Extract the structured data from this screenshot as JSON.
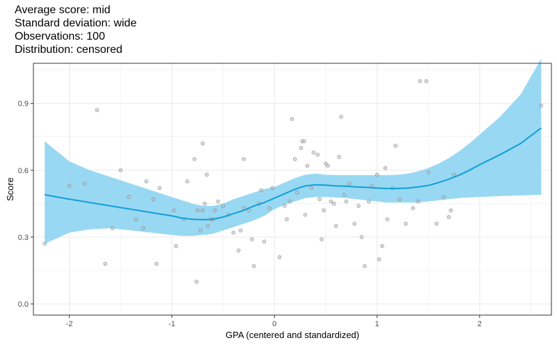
{
  "title_lines": [
    "Average score: mid",
    "Standard deviation: wide",
    "Observations: 100",
    "Distribution: censored"
  ],
  "chart_data": {
    "type": "scatter",
    "xlabel": "GPA (centered and standardized)",
    "ylabel": "Score",
    "xlim": [
      -2.35,
      2.7
    ],
    "ylim": [
      -0.05,
      1.08
    ],
    "x_ticks": [
      -2,
      -1,
      0,
      1,
      2
    ],
    "y_ticks": [
      0.0,
      0.3,
      0.6,
      0.9
    ],
    "x_tick_labels": [
      "-2",
      "-1",
      "0",
      "1",
      "2"
    ],
    "y_tick_labels": [
      "0.0",
      "0.3",
      "0.6",
      "0.9"
    ],
    "grid": true,
    "points": [
      [
        -2.24,
        0.27
      ],
      [
        -2.0,
        0.53
      ],
      [
        -1.85,
        0.54
      ],
      [
        -1.73,
        0.87
      ],
      [
        -1.65,
        0.18
      ],
      [
        -1.58,
        0.34
      ],
      [
        -1.5,
        0.6
      ],
      [
        -1.42,
        0.48
      ],
      [
        -1.35,
        0.38
      ],
      [
        -1.28,
        0.34
      ],
      [
        -1.25,
        0.55
      ],
      [
        -1.18,
        0.47
      ],
      [
        -1.15,
        0.18
      ],
      [
        -1.12,
        0.52
      ],
      [
        -0.98,
        0.42
      ],
      [
        -0.96,
        0.26
      ],
      [
        -0.88,
        0.38
      ],
      [
        -0.85,
        0.55
      ],
      [
        -0.78,
        0.65
      ],
      [
        -0.76,
        0.1
      ],
      [
        -0.75,
        0.42
      ],
      [
        -0.72,
        0.33
      ],
      [
        -0.7,
        0.72
      ],
      [
        -0.7,
        0.42
      ],
      [
        -0.68,
        0.45
      ],
      [
        -0.66,
        0.58
      ],
      [
        -0.65,
        0.35
      ],
      [
        -0.62,
        0.38
      ],
      [
        -0.6,
        0.38
      ],
      [
        -0.58,
        0.42
      ],
      [
        -0.55,
        0.46
      ],
      [
        -0.5,
        0.44
      ],
      [
        -0.45,
        0.4
      ],
      [
        -0.4,
        0.32
      ],
      [
        -0.35,
        0.24
      ],
      [
        -0.33,
        0.33
      ],
      [
        -0.3,
        0.43
      ],
      [
        -0.3,
        0.65
      ],
      [
        -0.25,
        0.42
      ],
      [
        -0.22,
        0.29
      ],
      [
        -0.2,
        0.17
      ],
      [
        -0.15,
        0.45
      ],
      [
        -0.13,
        0.51
      ],
      [
        -0.1,
        0.28
      ],
      [
        -0.05,
        0.43
      ],
      [
        -0.02,
        0.52
      ],
      [
        0.05,
        0.21
      ],
      [
        0.1,
        0.44
      ],
      [
        0.12,
        0.38
      ],
      [
        0.15,
        0.46
      ],
      [
        0.17,
        0.83
      ],
      [
        0.2,
        0.65
      ],
      [
        0.22,
        0.5
      ],
      [
        0.26,
        0.7
      ],
      [
        0.27,
        0.73
      ],
      [
        0.29,
        0.73
      ],
      [
        0.3,
        0.4
      ],
      [
        0.32,
        0.62
      ],
      [
        0.36,
        0.52
      ],
      [
        0.38,
        0.68
      ],
      [
        0.42,
        0.67
      ],
      [
        0.44,
        0.47
      ],
      [
        0.46,
        0.29
      ],
      [
        0.48,
        0.42
      ],
      [
        0.5,
        0.63
      ],
      [
        0.52,
        0.62
      ],
      [
        0.55,
        0.46
      ],
      [
        0.58,
        0.45
      ],
      [
        0.6,
        0.35
      ],
      [
        0.63,
        0.66
      ],
      [
        0.65,
        0.84
      ],
      [
        0.68,
        0.49
      ],
      [
        0.7,
        0.46
      ],
      [
        0.73,
        0.54
      ],
      [
        0.78,
        0.36
      ],
      [
        0.82,
        0.44
      ],
      [
        0.85,
        0.3
      ],
      [
        0.88,
        0.17
      ],
      [
        0.92,
        0.46
      ],
      [
        0.95,
        0.53
      ],
      [
        1.0,
        0.58
      ],
      [
        1.02,
        0.2
      ],
      [
        1.05,
        0.26
      ],
      [
        1.08,
        0.61
      ],
      [
        1.1,
        0.38
      ],
      [
        1.15,
        0.52
      ],
      [
        1.18,
        0.71
      ],
      [
        1.22,
        0.47
      ],
      [
        1.28,
        0.36
      ],
      [
        1.35,
        0.43
      ],
      [
        1.4,
        0.46
      ],
      [
        1.42,
        1.0
      ],
      [
        1.48,
        1.0
      ],
      [
        1.5,
        0.59
      ],
      [
        1.58,
        0.36
      ],
      [
        1.65,
        0.48
      ],
      [
        1.7,
        0.39
      ],
      [
        1.72,
        0.42
      ],
      [
        1.75,
        0.58
      ],
      [
        2.6,
        0.89
      ]
    ],
    "smooth_line": {
      "x": [
        -2.24,
        -2.0,
        -1.8,
        -1.6,
        -1.4,
        -1.2,
        -1.0,
        -0.9,
        -0.8,
        -0.7,
        -0.6,
        -0.5,
        -0.4,
        -0.3,
        -0.2,
        -0.1,
        0.0,
        0.1,
        0.2,
        0.3,
        0.4,
        0.5,
        0.6,
        0.7,
        0.8,
        0.9,
        1.0,
        1.1,
        1.2,
        1.3,
        1.4,
        1.5,
        1.6,
        1.7,
        1.8,
        1.9,
        2.0,
        2.2,
        2.4,
        2.6
      ],
      "y": [
        0.49,
        0.47,
        0.455,
        0.44,
        0.425,
        0.41,
        0.395,
        0.385,
        0.38,
        0.378,
        0.38,
        0.39,
        0.405,
        0.42,
        0.44,
        0.455,
        0.475,
        0.495,
        0.515,
        0.53,
        0.535,
        0.533,
        0.53,
        0.528,
        0.525,
        0.523,
        0.52,
        0.518,
        0.518,
        0.52,
        0.525,
        0.532,
        0.545,
        0.56,
        0.578,
        0.6,
        0.625,
        0.67,
        0.72,
        0.79
      ]
    },
    "ci_upper": [
      0.73,
      0.64,
      0.6,
      0.57,
      0.54,
      0.51,
      0.48,
      0.465,
      0.45,
      0.44,
      0.44,
      0.45,
      0.47,
      0.485,
      0.5,
      0.515,
      0.525,
      0.545,
      0.565,
      0.58,
      0.585,
      0.58,
      0.578,
      0.578,
      0.578,
      0.578,
      0.578,
      0.578,
      0.58,
      0.585,
      0.595,
      0.61,
      0.63,
      0.655,
      0.685,
      0.72,
      0.76,
      0.84,
      0.94,
      1.1
    ],
    "ci_lower": [
      0.27,
      0.32,
      0.335,
      0.34,
      0.33,
      0.32,
      0.31,
      0.305,
      0.305,
      0.31,
      0.315,
      0.33,
      0.345,
      0.36,
      0.375,
      0.395,
      0.425,
      0.445,
      0.46,
      0.475,
      0.48,
      0.48,
      0.478,
      0.475,
      0.47,
      0.465,
      0.46,
      0.455,
      0.455,
      0.455,
      0.455,
      0.46,
      0.465,
      0.47,
      0.475,
      0.478,
      0.48,
      0.484,
      0.487,
      0.49
    ],
    "colors": {
      "points_fill": "#bbbbbb",
      "points_stroke": "#777777",
      "line": "#0f9fd8",
      "ribbon": "#93d6f1",
      "grid": "#ebebeb",
      "panel_border": "#333333"
    }
  }
}
